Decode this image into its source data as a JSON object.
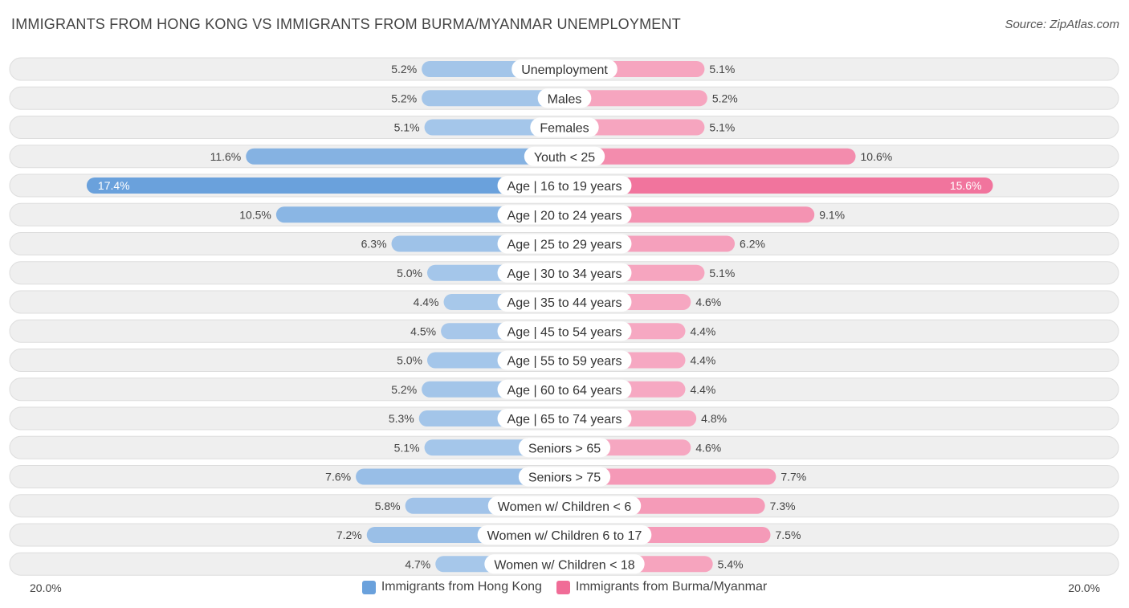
{
  "header": {
    "title": "IMMIGRANTS FROM HONG KONG VS IMMIGRANTS FROM BURMA/MYANMAR UNEMPLOYMENT",
    "source": "Source: ZipAtlas.com"
  },
  "axis": {
    "left_label": "20.0%",
    "right_label": "20.0%"
  },
  "legend": [
    {
      "name": "Immigrants from Hong Kong",
      "color": "#6aa1dc"
    },
    {
      "name": "Immigrants from Burma/Myanmar",
      "color": "#f06c97"
    }
  ],
  "chart_data": {
    "type": "bar",
    "orientation": "horizontal-diverging",
    "title": "IMMIGRANTS FROM HONG KONG VS IMMIGRANTS FROM BURMA/MYANMAR UNEMPLOYMENT",
    "xlim": [
      -20,
      20
    ],
    "unit": "%",
    "categories": [
      "Unemployment",
      "Males",
      "Females",
      "Youth < 25",
      "Age | 16 to 19 years",
      "Age | 20 to 24 years",
      "Age | 25 to 29 years",
      "Age | 30 to 34 years",
      "Age | 35 to 44 years",
      "Age | 45 to 54 years",
      "Age | 55 to 59 years",
      "Age | 60 to 64 years",
      "Age | 65 to 74 years",
      "Seniors > 65",
      "Seniors > 75",
      "Women w/ Children < 6",
      "Women w/ Children 6 to 17",
      "Women w/ Children < 18"
    ],
    "series": [
      {
        "name": "Immigrants from Hong Kong",
        "side": "left",
        "color": "#6aa1dc",
        "values": [
          5.2,
          5.2,
          5.1,
          11.6,
          17.4,
          10.5,
          6.3,
          5.0,
          4.4,
          4.5,
          5.0,
          5.2,
          5.3,
          5.1,
          7.6,
          5.8,
          7.2,
          4.7
        ],
        "labels": [
          "5.2%",
          "5.2%",
          "5.1%",
          "11.6%",
          "17.4%",
          "10.5%",
          "6.3%",
          "5.0%",
          "4.4%",
          "4.5%",
          "5.0%",
          "5.2%",
          "5.3%",
          "5.1%",
          "7.6%",
          "5.8%",
          "7.2%",
          "4.7%"
        ]
      },
      {
        "name": "Immigrants from Burma/Myanmar",
        "side": "right",
        "color": "#f06c97",
        "values": [
          5.1,
          5.2,
          5.1,
          10.6,
          15.6,
          9.1,
          6.2,
          5.1,
          4.6,
          4.4,
          4.4,
          4.4,
          4.8,
          4.6,
          7.7,
          7.3,
          7.5,
          5.4
        ],
        "labels": [
          "5.1%",
          "5.2%",
          "5.1%",
          "10.6%",
          "15.6%",
          "9.1%",
          "6.2%",
          "5.1%",
          "4.6%",
          "4.4%",
          "4.4%",
          "4.4%",
          "4.8%",
          "4.6%",
          "7.7%",
          "7.3%",
          "7.5%",
          "5.4%"
        ]
      }
    ]
  }
}
